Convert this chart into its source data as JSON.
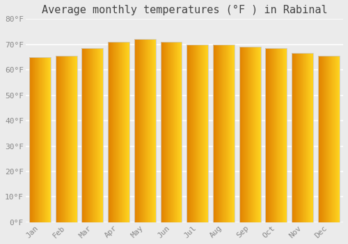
{
  "months": [
    "Jan",
    "Feb",
    "Mar",
    "Apr",
    "May",
    "Jun",
    "Jul",
    "Aug",
    "Sep",
    "Oct",
    "Nov",
    "Dec"
  ],
  "values": [
    65.0,
    65.5,
    68.5,
    71.0,
    72.0,
    71.0,
    70.0,
    70.0,
    69.0,
    68.5,
    66.5,
    65.5
  ],
  "title": "Average monthly temperatures (°F ) in Rabinal",
  "ylim": [
    0,
    80
  ],
  "yticks": [
    0,
    10,
    20,
    30,
    40,
    50,
    60,
    70,
    80
  ],
  "ytick_labels": [
    "0°F",
    "10°F",
    "20°F",
    "30°F",
    "40°F",
    "50°F",
    "60°F",
    "70°F",
    "80°F"
  ],
  "background_color": "#ebebeb",
  "plot_bg_color": "#ebebeb",
  "grid_color": "#ffffff",
  "bar_color_left": "#E08000",
  "bar_color_right": "#FFD000",
  "bar_edge_color": "#cccccc",
  "title_fontsize": 11,
  "tick_fontsize": 8,
  "bar_width": 0.82
}
